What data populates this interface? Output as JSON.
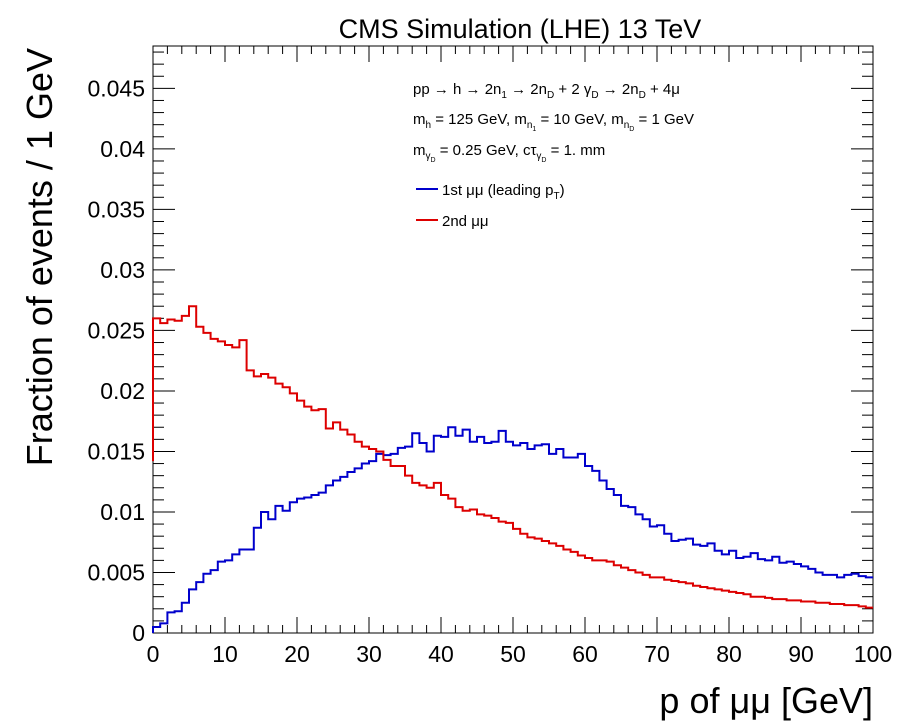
{
  "chart_data": {
    "type": "line",
    "title": "CMS Simulation (LHE) 13 TeV",
    "xlabel": "p of μμ [GeV]",
    "ylabel": "Fraction of events / 1 GeV",
    "xlim": [
      0,
      100
    ],
    "ylim": [
      0,
      0.0485
    ],
    "x_ticks": [
      "0",
      "10",
      "20",
      "30",
      "40",
      "50",
      "60",
      "70",
      "80",
      "90",
      "100"
    ],
    "y_ticks": [
      "0",
      "0.005",
      "0.01",
      "0.015",
      "0.02",
      "0.025",
      "0.03",
      "0.035",
      "0.04",
      "0.045"
    ],
    "annotations": {
      "process": {
        "base1": "pp → h → 2n",
        "sub1": "1",
        "base2": " → 2n",
        "sub2": "D",
        "base3": " + 2 γ",
        "sub3": "D",
        "base4": " → 2n",
        "sub4": "D",
        "base5": " + 4μ"
      },
      "masses": {
        "b1": "m",
        "s1": "h",
        "b2": " = 125 GeV, m",
        "s2": "n",
        "ss2": "1",
        "b3": " = 10 GeV, m",
        "s3": "n",
        "ss3": "D",
        "b4": " = 1 GeV"
      },
      "darkphoton": {
        "b1": "m",
        "s1": "γ",
        "ss1": "D",
        "b2": " = 0.25 GeV, cτ",
        "s2": "γ",
        "ss2": "D",
        "b3": " = 1. mm"
      }
    },
    "legend": {
      "placement": "top-center",
      "entries": [
        {
          "base": "1st μμ (leading p",
          "sub": "T",
          "tail": ")",
          "color": "#0000cc"
        },
        {
          "base": "2nd μμ",
          "sub": "",
          "tail": "",
          "color": "#dd0000"
        }
      ]
    },
    "bin_width": 1,
    "series": [
      {
        "name": "1st μμ (leading pT)",
        "color": "#0000cc",
        "values": [
          0.0005,
          0.0008,
          0.0017,
          0.0018,
          0.0025,
          0.0036,
          0.0042,
          0.0049,
          0.0052,
          0.0059,
          0.006,
          0.0065,
          0.0069,
          0.0069,
          0.0087,
          0.01,
          0.0094,
          0.0105,
          0.0101,
          0.0108,
          0.0111,
          0.0112,
          0.0114,
          0.0116,
          0.0122,
          0.0126,
          0.0129,
          0.0133,
          0.0136,
          0.014,
          0.0142,
          0.0148,
          0.0147,
          0.0148,
          0.0153,
          0.0154,
          0.0165,
          0.0157,
          0.015,
          0.0163,
          0.0162,
          0.017,
          0.0163,
          0.0168,
          0.0158,
          0.0162,
          0.0157,
          0.0158,
          0.0167,
          0.0158,
          0.0155,
          0.0157,
          0.0152,
          0.0155,
          0.0156,
          0.0148,
          0.0152,
          0.0145,
          0.0145,
          0.0148,
          0.0138,
          0.0134,
          0.0126,
          0.0119,
          0.0114,
          0.0105,
          0.0104,
          0.0098,
          0.0094,
          0.0088,
          0.0089,
          0.0082,
          0.0076,
          0.0077,
          0.0078,
          0.0073,
          0.0072,
          0.0074,
          0.0068,
          0.0065,
          0.0068,
          0.0062,
          0.0063,
          0.0066,
          0.0061,
          0.006,
          0.0063,
          0.0058,
          0.0059,
          0.0057,
          0.0055,
          0.0053,
          0.005,
          0.0048,
          0.0048,
          0.0046,
          0.0048,
          0.0049,
          0.0047,
          0.0046
        ]
      },
      {
        "name": "2nd μμ",
        "color": "#dd0000",
        "values": [
          0.026,
          0.0256,
          0.0259,
          0.0258,
          0.0262,
          0.027,
          0.0253,
          0.0248,
          0.0243,
          0.0241,
          0.0238,
          0.0236,
          0.0242,
          0.0217,
          0.0212,
          0.0214,
          0.0211,
          0.0206,
          0.0203,
          0.0198,
          0.0192,
          0.0187,
          0.0184,
          0.0185,
          0.0169,
          0.0174,
          0.0168,
          0.0164,
          0.0158,
          0.0154,
          0.0152,
          0.015,
          0.0143,
          0.0138,
          0.0138,
          0.013,
          0.0124,
          0.0122,
          0.012,
          0.0124,
          0.0114,
          0.0111,
          0.0104,
          0.0101,
          0.0102,
          0.0098,
          0.0097,
          0.0095,
          0.0092,
          0.0091,
          0.0086,
          0.0082,
          0.0079,
          0.0078,
          0.0076,
          0.0074,
          0.0072,
          0.0069,
          0.0067,
          0.0064,
          0.0062,
          0.006,
          0.006,
          0.0059,
          0.0056,
          0.0054,
          0.0052,
          0.005,
          0.0048,
          0.0046,
          0.0046,
          0.0044,
          0.0043,
          0.0042,
          0.0041,
          0.0039,
          0.0038,
          0.0037,
          0.0036,
          0.0035,
          0.0034,
          0.0033,
          0.0032,
          0.003,
          0.003,
          0.0029,
          0.0028,
          0.0028,
          0.0027,
          0.0027,
          0.0026,
          0.0026,
          0.0025,
          0.0025,
          0.0024,
          0.0024,
          0.0023,
          0.0023,
          0.0022,
          0.0021
        ]
      }
    ],
    "first_bin_start": {
      "2nd μμ": 0.0142
    }
  }
}
